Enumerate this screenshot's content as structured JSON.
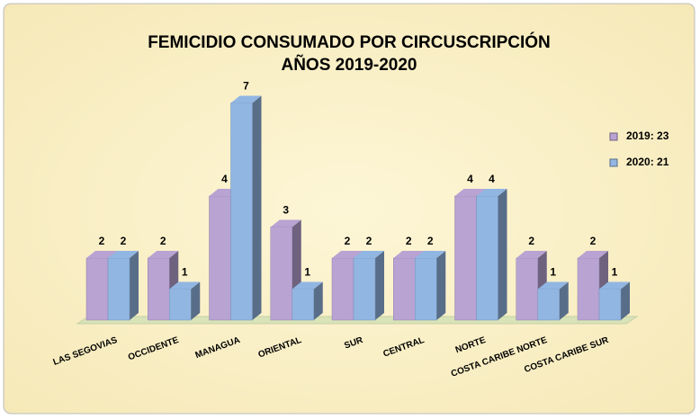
{
  "chart_data": {
    "type": "bar3d",
    "title": "FEMICIDIO CONSUMADO POR CIRCUSCRIPCIÓN",
    "subtitle": "AÑOS 2019-2020",
    "categories": [
      "LAS SEGOVIAS",
      "OCCIDENTE",
      "MANAGUA",
      "ORIENTAL",
      "SUR",
      "CENTRAL",
      "NORTE",
      "COSTA CARIBE NORTE",
      "COSTA CARIBE SUR"
    ],
    "series": [
      {
        "name": "2019:  23",
        "color": "#b8a3d3",
        "values": [
          2,
          2,
          4,
          3,
          2,
          2,
          4,
          2,
          2
        ]
      },
      {
        "name": "2020:  21",
        "color": "#92b6e2",
        "values": [
          2,
          1,
          7,
          1,
          2,
          2,
          4,
          1,
          1
        ]
      }
    ]
  }
}
